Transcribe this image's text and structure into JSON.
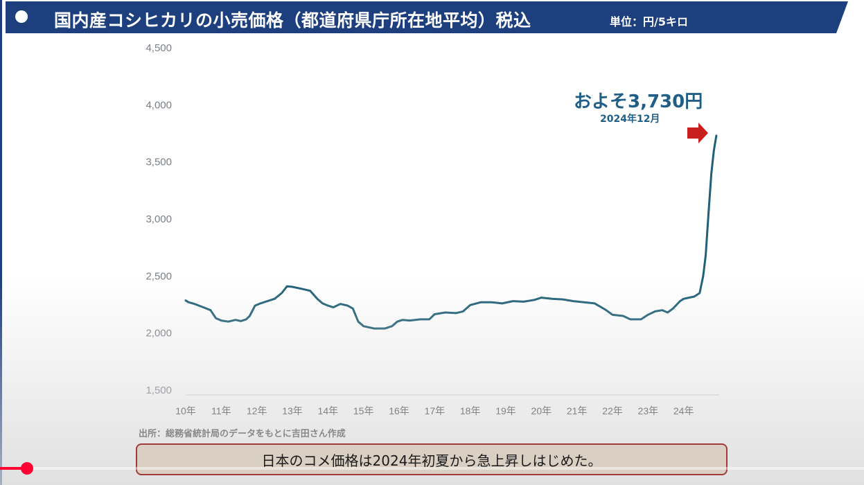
{
  "title_bar": {
    "title": "国内産コシヒカリの小売価格（都道府県庁所在地平均）税込",
    "unit": "単位：円/5キロ"
  },
  "annotation": {
    "value_label": "およそ3,730円",
    "date_label": "2024年12月"
  },
  "source_note": "出所：総務省統計局のデータをもとに吉田さん作成",
  "caption": "日本のコメ価格は2024年初夏から急上昇しはじめた。",
  "video_player": {
    "progress_fraction": 0.03
  },
  "colors": {
    "title_bar": "#1e3f7d",
    "line": "#1f5f77",
    "annotation": "#1f5f87",
    "arrow": "#c81e1e",
    "progress": "#ff0033"
  },
  "chart_data": {
    "type": "line",
    "title": "国内産コシヒカリの小売価格（都道府県庁所在地平均）税込",
    "unit": "円/5キロ",
    "xlabel": "",
    "ylabel": "",
    "ylim": [
      1500,
      4500
    ],
    "yticks": [
      1500,
      2000,
      2500,
      3000,
      3500,
      4000,
      4500
    ],
    "yticks_labels": [
      "1,500",
      "2,000",
      "2,500",
      "3,000",
      "3,500",
      "4,000",
      "4,500"
    ],
    "xlim": [
      2010,
      2025
    ],
    "xticks": [
      2010,
      2011,
      2012,
      2013,
      2014,
      2015,
      2016,
      2017,
      2018,
      2019,
      2020,
      2021,
      2022,
      2023,
      2024
    ],
    "xticks_labels": [
      "10年",
      "11年",
      "12年",
      "13年",
      "14年",
      "15年",
      "16年",
      "17年",
      "18年",
      "19年",
      "20年",
      "21年",
      "22年",
      "23年",
      "24年"
    ],
    "grid": false,
    "series": [
      {
        "color": "#1f5f77",
        "x": [
          2010.0,
          2010.08,
          2010.25,
          2010.5,
          2010.7,
          2010.85,
          2011.0,
          2011.2,
          2011.4,
          2011.55,
          2011.7,
          2011.8,
          2011.95,
          2012.1,
          2012.3,
          2012.5,
          2012.7,
          2012.85,
          2013.0,
          2013.3,
          2013.5,
          2013.7,
          2013.85,
          2014.0,
          2014.15,
          2014.35,
          2014.55,
          2014.7,
          2014.85,
          2015.0,
          2015.3,
          2015.6,
          2015.8,
          2015.95,
          2016.1,
          2016.3,
          2016.6,
          2016.85,
          2017.0,
          2017.3,
          2017.6,
          2017.8,
          2018.0,
          2018.3,
          2018.6,
          2018.9,
          2019.2,
          2019.5,
          2019.8,
          2020.0,
          2020.3,
          2020.6,
          2020.9,
          2021.2,
          2021.5,
          2021.8,
          2022.0,
          2022.3,
          2022.5,
          2022.8,
          2023.0,
          2023.2,
          2023.4,
          2023.55,
          2023.7,
          2023.9,
          2024.0,
          2024.15,
          2024.3,
          2024.45,
          2024.55,
          2024.62,
          2024.7,
          2024.78,
          2024.85,
          2024.92
        ],
        "y": [
          2285,
          2270,
          2255,
          2225,
          2200,
          2130,
          2110,
          2100,
          2115,
          2105,
          2120,
          2150,
          2240,
          2260,
          2280,
          2300,
          2350,
          2410,
          2405,
          2385,
          2370,
          2300,
          2260,
          2240,
          2225,
          2255,
          2240,
          2215,
          2100,
          2060,
          2040,
          2040,
          2060,
          2100,
          2115,
          2110,
          2120,
          2120,
          2165,
          2180,
          2175,
          2190,
          2245,
          2270,
          2270,
          2260,
          2280,
          2275,
          2290,
          2310,
          2300,
          2295,
          2280,
          2270,
          2260,
          2205,
          2160,
          2150,
          2120,
          2120,
          2160,
          2190,
          2200,
          2180,
          2215,
          2280,
          2300,
          2310,
          2320,
          2350,
          2500,
          2680,
          3050,
          3400,
          3600,
          3730
        ]
      }
    ],
    "annotations": [
      {
        "text": "およそ3,730円",
        "subtext": "2024年12月",
        "x": 2024.92,
        "y": 3730
      }
    ]
  }
}
